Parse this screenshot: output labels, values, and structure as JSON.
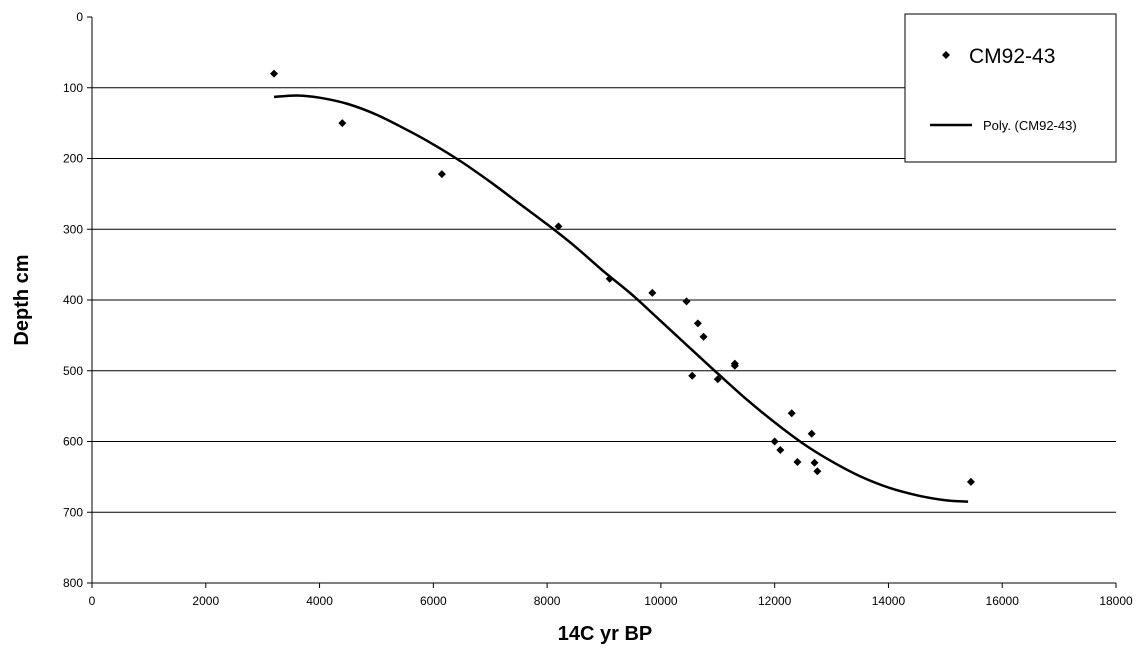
{
  "chart_data": {
    "type": "scatter",
    "xlabel": "14C yr BP",
    "ylabel": "Depth cm",
    "xlim": [
      0,
      18000
    ],
    "ylim": [
      0,
      800
    ],
    "y_inverted": true,
    "grid": "horizontal",
    "legend_position": "top-right",
    "x_ticks": [
      "0",
      "2000",
      "4000",
      "6000",
      "8000",
      "10000",
      "12000",
      "14000",
      "16000",
      "18000"
    ],
    "y_ticks": [
      "0",
      "100",
      "200",
      "300",
      "400",
      "500",
      "600",
      "700",
      "800"
    ],
    "series": [
      {
        "name": "CM92-43",
        "kind": "points",
        "color": "#000000",
        "marker": "diamond",
        "x": [
          3200,
          4400,
          6150,
          8200,
          9100,
          9850,
          10450,
          10650,
          10750,
          10550,
          11000,
          11300,
          11300,
          12000,
          12100,
          12300,
          12400,
          12650,
          12700,
          12750,
          15450
        ],
        "y": [
          80,
          150,
          222,
          296,
          370,
          390,
          402,
          433,
          452,
          507,
          512,
          490,
          493,
          600,
          612,
          560,
          629,
          589,
          630,
          642,
          657
        ]
      },
      {
        "name": "Poly. (CM92-43)",
        "kind": "trendline",
        "color": "#000000",
        "x": [
          3200,
          3600,
          4000,
          4500,
          5000,
          5500,
          6000,
          6500,
          7000,
          7500,
          8000,
          8500,
          9000,
          9500,
          10000,
          10500,
          11000,
          11500,
          12000,
          12500,
          13000,
          13500,
          14000,
          14500,
          15000,
          15400
        ],
        "y": [
          113,
          111,
          114,
          123,
          138,
          158,
          180,
          205,
          233,
          263,
          293,
          325,
          360,
          393,
          430,
          467,
          504,
          540,
          573,
          603,
          628,
          649,
          665,
          676,
          683,
          685
        ]
      }
    ]
  }
}
